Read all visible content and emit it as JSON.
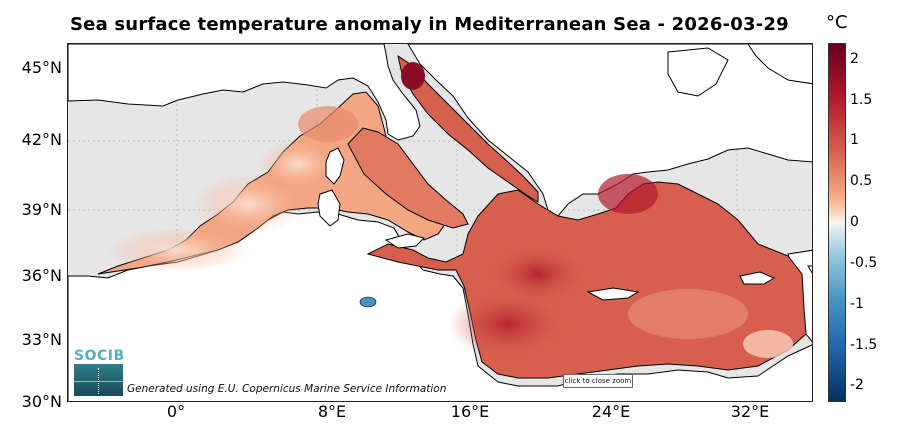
{
  "title": "Sea surface temperature anomaly in Mediterranean Sea - 2026-03-29",
  "colorbar": {
    "unit": "°C",
    "ticks": [
      "2",
      "1.5",
      "1",
      "0.5",
      "0",
      "-0.5",
      "-1",
      "-1.5",
      "-2"
    ],
    "range": [
      -2.2,
      2.2
    ],
    "colors": [
      "#67001f",
      "#b2182b",
      "#d6604d",
      "#f4a582",
      "#fddbc7",
      "#f7f7f7",
      "#d1e5f0",
      "#92c5de",
      "#4393c3",
      "#2166ac",
      "#053061"
    ]
  },
  "axes": {
    "lat_ticks": [
      "45°N",
      "42°N",
      "39°N",
      "36°N",
      "33°N",
      "30°N"
    ],
    "lon_ticks": [
      "0°",
      "8°E",
      "16°E",
      "24°E",
      "32°E"
    ]
  },
  "map": {
    "land_color": "#ffffff",
    "nodata_color": "#e6e6e6",
    "coast_color": "#000000"
  },
  "logo": {
    "text": "SOCIB"
  },
  "credit": "Generated using E.U. Copernicus Marine Service Information",
  "zoom_button": {
    "label": "click to close zoom"
  }
}
